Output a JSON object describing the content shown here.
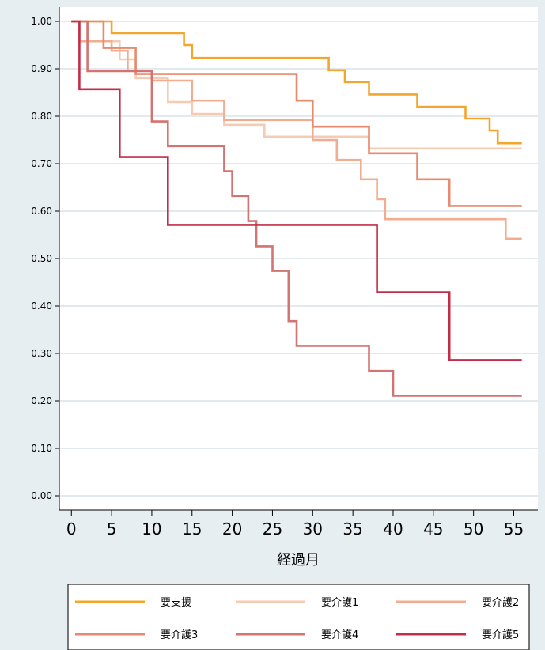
{
  "chart_data": {
    "type": "line",
    "step": true,
    "title": "",
    "xlabel": "経過月",
    "ylabel": "",
    "xlim": [
      -1.5,
      58
    ],
    "ylim": [
      -0.03,
      1.03
    ],
    "xticks": [
      0,
      5,
      10,
      15,
      20,
      25,
      30,
      35,
      40,
      45,
      50,
      55
    ],
    "xtick_labels": [
      "0",
      "5",
      "10",
      "15",
      "20",
      "25",
      "30",
      "35",
      "40",
      "45",
      "50",
      "55"
    ],
    "yticks": [
      0,
      0.1,
      0.2,
      0.3,
      0.4,
      0.5,
      0.6,
      0.7,
      0.8,
      0.9,
      1.0
    ],
    "ytick_labels": [
      "0.00",
      "0.10",
      "0.20",
      "0.30",
      "0.40",
      "0.50",
      "0.60",
      "0.70",
      "0.80",
      "0.90",
      "1.00"
    ],
    "grid": true,
    "legend_position": "bottom",
    "colors": {
      "background": "#e7eef1",
      "plot_area": "#ffffff",
      "grid": "#e2eaee"
    },
    "series": [
      {
        "name": "要支援",
        "color": "#f3a62e",
        "points": [
          [
            0,
            1.0
          ],
          [
            5,
            0.975
          ],
          [
            14,
            0.95
          ],
          [
            15,
            0.923
          ],
          [
            32,
            0.897
          ],
          [
            34,
            0.872
          ],
          [
            37,
            0.846
          ],
          [
            43,
            0.82
          ],
          [
            49,
            0.795
          ],
          [
            52,
            0.77
          ],
          [
            53,
            0.743
          ],
          [
            56,
            0.743
          ]
        ]
      },
      {
        "name": "要介護1",
        "color": "#f7cbb3",
        "points": [
          [
            0,
            1.0
          ],
          [
            2,
            0.958
          ],
          [
            6,
            0.92
          ],
          [
            8,
            0.88
          ],
          [
            12,
            0.83
          ],
          [
            15,
            0.805
          ],
          [
            19,
            0.782
          ],
          [
            24,
            0.757
          ],
          [
            37,
            0.732
          ],
          [
            56,
            0.732
          ]
        ]
      },
      {
        "name": "要介護2",
        "color": "#f2ad90",
        "points": [
          [
            0,
            1.0
          ],
          [
            1,
            0.958
          ],
          [
            5,
            0.938
          ],
          [
            7,
            0.896
          ],
          [
            10,
            0.875
          ],
          [
            15,
            0.833
          ],
          [
            19,
            0.792
          ],
          [
            30,
            0.75
          ],
          [
            33,
            0.708
          ],
          [
            34,
            0.708
          ],
          [
            36,
            0.667
          ],
          [
            38,
            0.625
          ],
          [
            39,
            0.583
          ],
          [
            51,
            0.583
          ],
          [
            54,
            0.542
          ],
          [
            56,
            0.542
          ]
        ]
      },
      {
        "name": "要介護3",
        "color": "#e98a6f",
        "points": [
          [
            0,
            1.0
          ],
          [
            4,
            0.944
          ],
          [
            8,
            0.889
          ],
          [
            28,
            0.833
          ],
          [
            30,
            0.778
          ],
          [
            37,
            0.722
          ],
          [
            43,
            0.667
          ],
          [
            47,
            0.611
          ],
          [
            56,
            0.611
          ]
        ]
      },
      {
        "name": "要介護4",
        "color": "#d27471",
        "points": [
          [
            0,
            1.0
          ],
          [
            2,
            0.895
          ],
          [
            10,
            0.789
          ],
          [
            12,
            0.737
          ],
          [
            19,
            0.684
          ],
          [
            20,
            0.632
          ],
          [
            22,
            0.579
          ],
          [
            23,
            0.526
          ],
          [
            25,
            0.474
          ],
          [
            27,
            0.368
          ],
          [
            28,
            0.316
          ],
          [
            37,
            0.263
          ],
          [
            40,
            0.211
          ],
          [
            56,
            0.211
          ]
        ]
      },
      {
        "name": "要介護5",
        "color": "#c42d48",
        "points": [
          [
            0,
            1.0
          ],
          [
            1,
            0.857
          ],
          [
            6,
            0.714
          ],
          [
            12,
            0.571
          ],
          [
            38,
            0.429
          ],
          [
            47,
            0.286
          ],
          [
            56,
            0.286
          ]
        ]
      }
    ]
  }
}
